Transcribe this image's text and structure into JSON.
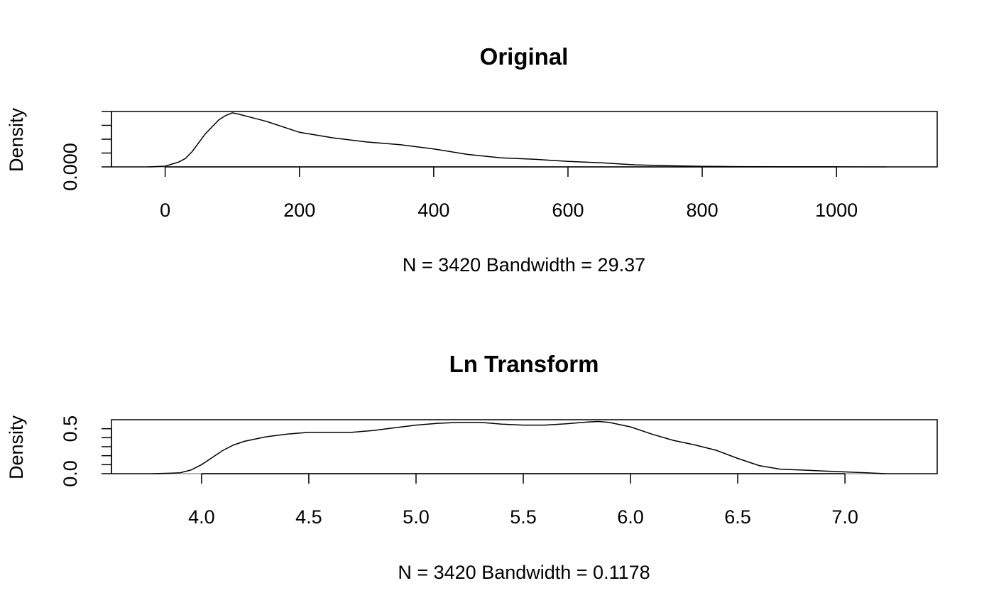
{
  "chart_data": [
    {
      "type": "line",
      "title": "Original",
      "xlabel": "N = 3420   Bandwidth = 29.37",
      "ylabel": "Density",
      "xlim": [
        -80,
        1150
      ],
      "ylim": [
        0,
        0.004
      ],
      "x_ticks": [
        0,
        200,
        400,
        600,
        800,
        1000
      ],
      "x_tick_labels": [
        "0",
        "200",
        "400",
        "600",
        "800",
        "1000"
      ],
      "y_ticks": [
        0,
        0.001,
        0.002,
        0.003,
        0.004
      ],
      "y_tick_labels": [
        "0.000",
        "",
        "",
        "",
        ""
      ],
      "grid": false,
      "series": [
        {
          "x": [
            -25,
            0,
            20,
            30,
            40,
            60,
            80,
            90,
            100,
            110,
            130,
            150,
            200,
            250,
            300,
            350,
            400,
            450,
            500,
            550,
            600,
            650,
            700,
            750,
            800,
            850,
            900,
            950,
            1000,
            1050,
            1075
          ],
          "y": [
            0.0,
            5e-05,
            0.00035,
            0.0006,
            0.0011,
            0.0024,
            0.0034,
            0.0037,
            0.0039,
            0.0038,
            0.00355,
            0.0033,
            0.0025,
            0.0021,
            0.0018,
            0.0016,
            0.0013,
            0.0009,
            0.00065,
            0.00055,
            0.0004,
            0.0003,
            0.00015,
            8e-05,
            4e-05,
            2e-05,
            1e-05,
            5e-06,
            3e-06,
            1e-06,
            0.0
          ]
        }
      ]
    },
    {
      "type": "line",
      "title": "Ln Transform",
      "xlabel": "N = 3420   Bandwidth = 0.1178",
      "ylabel": "Density",
      "xlim": [
        3.58,
        7.43
      ],
      "ylim": [
        0,
        0.6
      ],
      "x_ticks": [
        4.0,
        4.5,
        5.0,
        5.5,
        6.0,
        6.5,
        7.0
      ],
      "x_tick_labels": [
        "4.0",
        "4.5",
        "5.0",
        "5.5",
        "6.0",
        "6.5",
        "7.0"
      ],
      "y_ticks": [
        0,
        0.1,
        0.2,
        0.3,
        0.4,
        0.5
      ],
      "y_tick_labels": [
        "0.0",
        "",
        "",
        "",
        "",
        "0.5"
      ],
      "grid": false,
      "series": [
        {
          "x": [
            3.77,
            3.85,
            3.9,
            3.95,
            4.0,
            4.05,
            4.1,
            4.15,
            4.2,
            4.3,
            4.4,
            4.5,
            4.6,
            4.7,
            4.8,
            4.9,
            5.0,
            5.1,
            5.2,
            5.3,
            5.4,
            5.5,
            5.6,
            5.7,
            5.8,
            5.85,
            5.9,
            6.0,
            6.1,
            6.2,
            6.3,
            6.4,
            6.5,
            6.6,
            6.7,
            6.8,
            6.9,
            7.0,
            7.1,
            7.19
          ],
          "y": [
            0.0,
            0.005,
            0.01,
            0.04,
            0.1,
            0.18,
            0.26,
            0.32,
            0.36,
            0.41,
            0.44,
            0.46,
            0.46,
            0.46,
            0.48,
            0.51,
            0.54,
            0.56,
            0.57,
            0.57,
            0.55,
            0.54,
            0.54,
            0.555,
            0.575,
            0.58,
            0.57,
            0.52,
            0.44,
            0.37,
            0.32,
            0.26,
            0.17,
            0.09,
            0.05,
            0.04,
            0.03,
            0.02,
            0.01,
            0.0
          ]
        }
      ]
    }
  ]
}
